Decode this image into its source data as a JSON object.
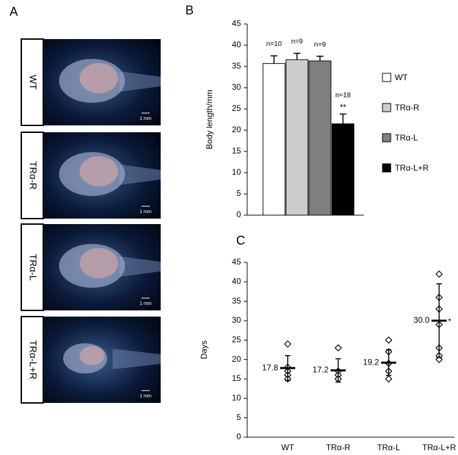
{
  "panel_a": {
    "label": "A",
    "images": [
      {
        "label": "WT",
        "scale": "1 mm"
      },
      {
        "label": "TRα-R",
        "scale": "1 mm"
      },
      {
        "label": "TRα-L",
        "scale": "1 mm"
      },
      {
        "label": "TRα-L+R",
        "scale": "1 mm"
      }
    ]
  },
  "chart_data": [
    {
      "type": "bar",
      "panel_label": "B",
      "ylabel": "Body length/mm",
      "categories": [
        "WT",
        "TRα-R",
        "TRα-L",
        "TRα-L+R"
      ],
      "values": [
        35.7,
        36.6,
        36.3,
        21.5
      ],
      "errors": [
        1.8,
        1.5,
        1.1,
        2.3
      ],
      "colors": [
        "#ffffff",
        "#cccccc",
        "#7f7f7f",
        "#000000"
      ],
      "annotations": [
        "n=10",
        "n=9",
        "n=9",
        "n=18"
      ],
      "significance": [
        null,
        null,
        null,
        "**"
      ],
      "ylim": [
        0,
        45
      ],
      "yticks": [
        0,
        5,
        10,
        15,
        20,
        25,
        30,
        35,
        40,
        45
      ],
      "legend": "right"
    },
    {
      "type": "strip",
      "panel_label": "C",
      "ylabel": "Days",
      "categories": [
        "WT",
        "TRα-R",
        "TRα-L",
        "TRα-L+R"
      ],
      "points": [
        [
          24,
          18,
          17,
          16,
          15
        ],
        [
          23,
          17,
          16,
          15,
          15
        ],
        [
          25,
          22,
          19,
          17,
          15
        ],
        [
          42,
          36,
          33,
          29,
          23,
          21,
          20
        ]
      ],
      "values": [
        17.8,
        17.2,
        19.2,
        30
      ],
      "value_labels": [
        "17.8",
        "17.2",
        "19.2",
        "30.0"
      ],
      "errors": [
        3.2,
        3.0,
        3.3,
        9.5
      ],
      "significance": [
        null,
        null,
        null,
        "*"
      ],
      "ylim": [
        0,
        45
      ],
      "yticks": [
        0,
        5,
        10,
        15,
        20,
        25,
        30,
        35,
        40,
        45
      ],
      "marker": "diamond"
    }
  ]
}
